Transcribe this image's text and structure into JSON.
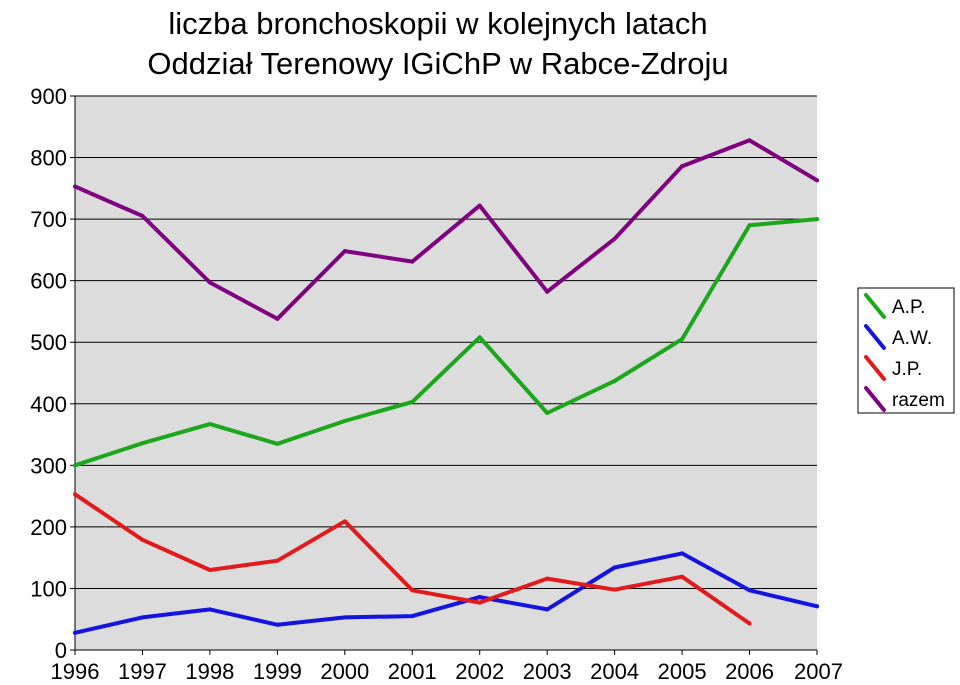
{
  "chart_data": {
    "type": "line",
    "title_lines": [
      "liczba bronchoskopii w kolejnych latach",
      "Oddział Terenowy IGiChP w Rabce-Zdroju"
    ],
    "xlabel": "",
    "ylabel": "",
    "x": [
      1996,
      1997,
      1998,
      1999,
      2000,
      2001,
      2002,
      2003,
      2004,
      2005,
      2006,
      2007
    ],
    "x_tick_labels": [
      "1996",
      "1997",
      "1998",
      "1999",
      "2000",
      "2001",
      "2002",
      "2003",
      "2004",
      "2005",
      "2006",
      "2007"
    ],
    "ylim": [
      0,
      900
    ],
    "y_ticks": [
      0,
      100,
      200,
      300,
      400,
      500,
      600,
      700,
      800,
      900
    ],
    "y_tick_labels": [
      "0",
      "100",
      "200",
      "300",
      "400",
      "500",
      "600",
      "700",
      "800",
      "900"
    ],
    "grid": "horizontal",
    "plot_background": "#dcdcdc",
    "legend_position": "right",
    "series": [
      {
        "name": "A.P.",
        "color": "#1aa71a",
        "values": [
          300,
          336,
          367,
          335,
          372,
          403,
          508,
          385,
          437,
          505,
          690,
          700
        ]
      },
      {
        "name": "A.W.",
        "color": "#1414e0",
        "values": [
          28,
          53,
          66,
          41,
          53,
          55,
          86,
          66,
          134,
          157,
          97,
          71
        ]
      },
      {
        "name": "J.P.",
        "color": "#e31a1a",
        "values": [
          253,
          179,
          130,
          145,
          209,
          97,
          77,
          116,
          98,
          119,
          43,
          null
        ]
      },
      {
        "name": "razem",
        "color": "#800080",
        "values": [
          753,
          705,
          597,
          538,
          648,
          631,
          722,
          582,
          668,
          786,
          828,
          763
        ]
      }
    ]
  }
}
